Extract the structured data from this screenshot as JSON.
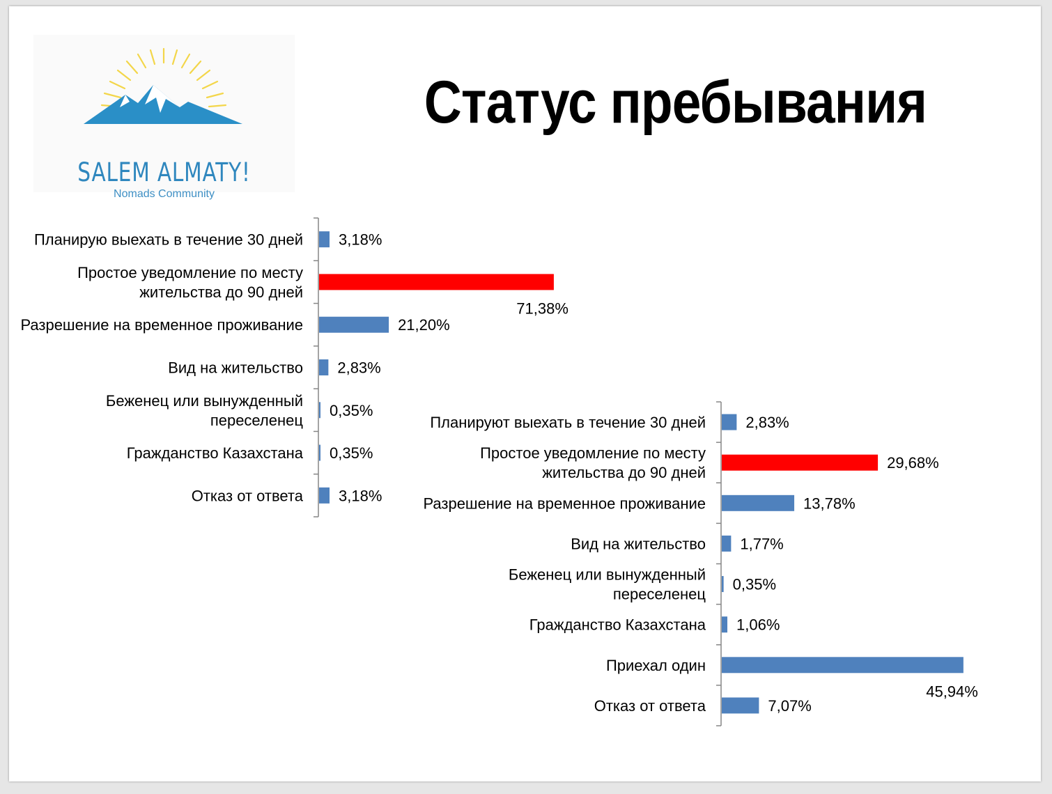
{
  "page": {
    "title": "Статус пребывания"
  },
  "logo": {
    "name": "SALEM ALMATY!",
    "tagline": "Nomads Community",
    "icon": "mountain-sun-logo"
  },
  "colors": {
    "bar_default": "#4f81bd",
    "bar_highlight": "#ff0000"
  },
  "chart_data": [
    {
      "type": "bar",
      "orientation": "horizontal",
      "categories": [
        [
          "Планирую выехать в течение 30 дней"
        ],
        [
          "Простое уведомление по месту",
          "жительства до 90 дней"
        ],
        [
          "Разрешение на временное проживание"
        ],
        [
          "Вид на жительство"
        ],
        [
          "Беженец или вынужденный",
          "переселенец"
        ],
        [
          "Гражданство Казахстана"
        ],
        [
          "Отказ от ответа"
        ]
      ],
      "values": [
        3.18,
        71.38,
        21.2,
        2.83,
        0.35,
        0.35,
        3.18
      ],
      "value_labels": [
        "3,18%",
        "71,38%",
        "21,20%",
        "2,83%",
        "0,35%",
        "0,35%",
        "3,18%"
      ],
      "highlight_index": 1,
      "label_below_index": 1
    },
    {
      "type": "bar",
      "orientation": "horizontal",
      "categories": [
        [
          "Планируют выехать в течение 30 дней"
        ],
        [
          "Простое уведомление по месту",
          "жительства до 90 дней"
        ],
        [
          "Разрешение на временное проживание"
        ],
        [
          "Вид на жительство"
        ],
        [
          "Беженец или вынужденный",
          "переселенец"
        ],
        [
          "Гражданство Казахстана"
        ],
        [
          "Приехал один"
        ],
        [
          "Отказ от ответа"
        ]
      ],
      "values": [
        2.83,
        29.68,
        13.78,
        1.77,
        0.35,
        1.06,
        45.94,
        7.07
      ],
      "value_labels": [
        "2,83%",
        "29,68%",
        "13,78%",
        "1,77%",
        "0,35%",
        "1,06%",
        "45,94%",
        "7,07%"
      ],
      "highlight_index": 1,
      "label_below_index": 6
    }
  ]
}
